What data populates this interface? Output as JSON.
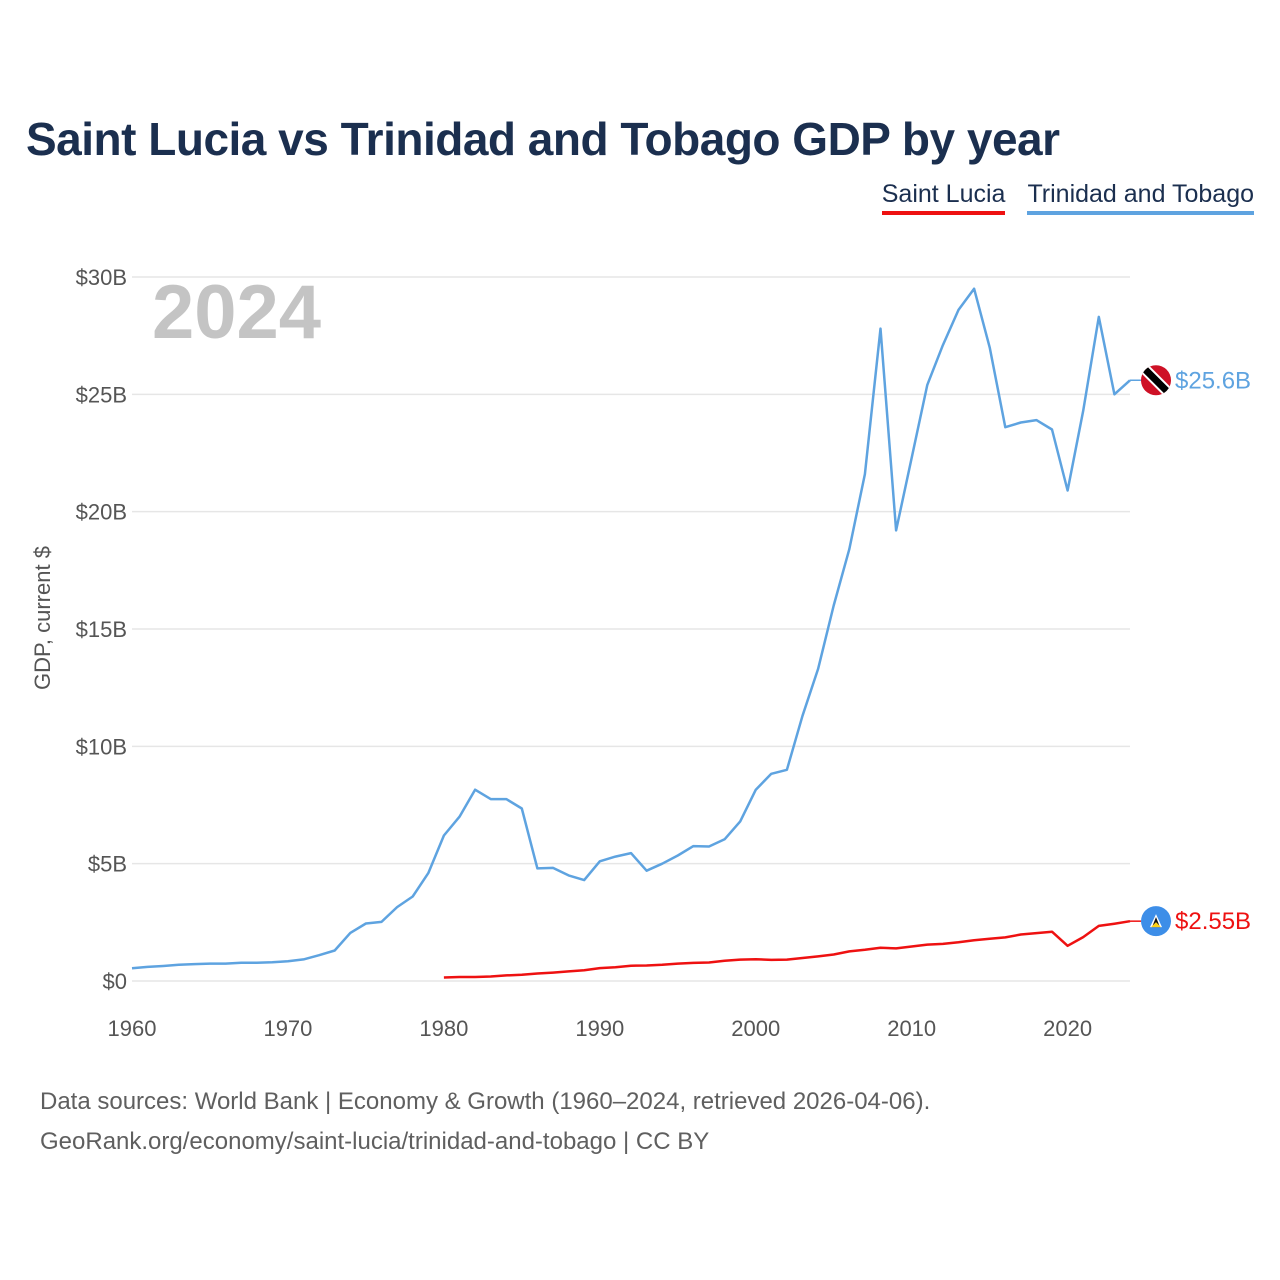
{
  "page": {
    "title": "Saint Lucia vs Trinidad and Tobago GDP by year",
    "source_line1": "Data sources: World Bank | Economy & Growth (1960–2024, retrieved 2026-04-06).",
    "source_line2": "GeoRank.org/economy/saint-lucia/trinidad-and-tobago | CC BY"
  },
  "legend": [
    {
      "label": "Saint Lucia",
      "color": "#ee1111"
    },
    {
      "label": "Trinidad and Tobago",
      "color": "#5ea3e0"
    }
  ],
  "chart_data": {
    "type": "line",
    "title": "Saint Lucia vs Trinidad and Tobago GDP by year",
    "ylabel": "GDP, current $",
    "xlabel": "",
    "year_display": "2024",
    "xlim": [
      1960,
      2024
    ],
    "ylim": [
      0,
      30
    ],
    "y_unit": "billion USD",
    "y_ticks": [
      0,
      5,
      10,
      15,
      20,
      25,
      30
    ],
    "y_tick_labels": [
      "$0",
      "$5B",
      "$10B",
      "$15B",
      "$20B",
      "$25B",
      "$30B"
    ],
    "x_ticks": [
      1960,
      1970,
      1980,
      1990,
      2000,
      2010,
      2020
    ],
    "x_tick_labels": [
      "1960",
      "1970",
      "1980",
      "1990",
      "2000",
      "2010",
      "2020"
    ],
    "grid": true,
    "series": [
      {
        "name": "Trinidad and Tobago",
        "color": "#5ea3e0",
        "end_label": "$25.6B",
        "icon": "trinidad-and-tobago-flag-icon",
        "x": [
          1960,
          1961,
          1962,
          1963,
          1964,
          1965,
          1966,
          1967,
          1968,
          1969,
          1970,
          1971,
          1972,
          1973,
          1974,
          1975,
          1976,
          1977,
          1978,
          1979,
          1980,
          1981,
          1982,
          1983,
          1984,
          1985,
          1986,
          1987,
          1988,
          1989,
          1990,
          1991,
          1992,
          1993,
          1994,
          1995,
          1996,
          1997,
          1998,
          1999,
          2000,
          2001,
          2002,
          2003,
          2004,
          2005,
          2006,
          2007,
          2008,
          2009,
          2010,
          2011,
          2012,
          2013,
          2014,
          2015,
          2016,
          2017,
          2018,
          2019,
          2020,
          2021,
          2022,
          2023,
          2024
        ],
        "values": [
          0.54,
          0.6,
          0.64,
          0.69,
          0.72,
          0.74,
          0.74,
          0.78,
          0.78,
          0.8,
          0.84,
          0.92,
          1.1,
          1.3,
          2.05,
          2.45,
          2.52,
          3.15,
          3.6,
          4.6,
          6.2,
          7.0,
          8.15,
          7.75,
          7.75,
          7.35,
          4.8,
          4.82,
          4.5,
          4.3,
          5.1,
          5.3,
          5.45,
          4.7,
          5.0,
          5.35,
          5.75,
          5.73,
          6.04,
          6.8,
          8.15,
          8.83,
          9.0,
          11.3,
          13.3,
          16.0,
          18.4,
          21.6,
          27.8,
          19.2,
          22.3,
          25.4,
          27.1,
          28.6,
          29.5,
          27.0,
          23.6,
          23.8,
          23.9,
          23.5,
          20.9,
          24.3,
          28.3,
          25.0,
          25.6
        ]
      },
      {
        "name": "Saint Lucia",
        "color": "#ee1111",
        "end_label": "$2.55B",
        "icon": "saint-lucia-flag-icon",
        "x": [
          1980,
          1981,
          1982,
          1983,
          1984,
          1985,
          1986,
          1987,
          1988,
          1989,
          1990,
          1991,
          1992,
          1993,
          1994,
          1995,
          1996,
          1997,
          1998,
          1999,
          2000,
          2001,
          2002,
          2003,
          2004,
          2005,
          2006,
          2007,
          2008,
          2009,
          2010,
          2011,
          2012,
          2013,
          2014,
          2015,
          2016,
          2017,
          2018,
          2019,
          2020,
          2021,
          2022,
          2023,
          2024
        ],
        "values": [
          0.15,
          0.17,
          0.17,
          0.19,
          0.24,
          0.27,
          0.32,
          0.36,
          0.41,
          0.46,
          0.55,
          0.59,
          0.65,
          0.66,
          0.69,
          0.74,
          0.77,
          0.79,
          0.86,
          0.91,
          0.93,
          0.9,
          0.91,
          0.98,
          1.05,
          1.13,
          1.26,
          1.33,
          1.42,
          1.39,
          1.47,
          1.55,
          1.58,
          1.65,
          1.74,
          1.8,
          1.86,
          1.98,
          2.04,
          2.1,
          1.5,
          1.87,
          2.35,
          2.44,
          2.55
        ]
      }
    ]
  }
}
